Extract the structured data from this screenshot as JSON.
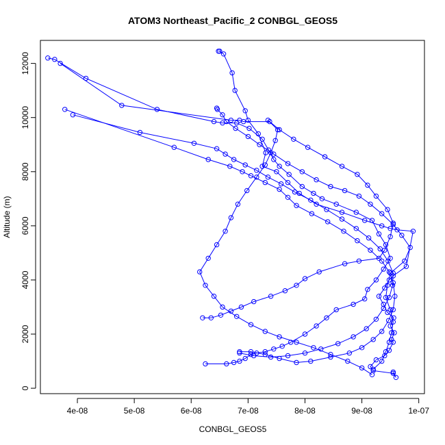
{
  "chart_data": {
    "type": "line",
    "title": "ATOM3 Northeast_Pacific_2 CONBGL_GEOS5",
    "xlabel": "CONBGL_GEOS5",
    "ylabel": "Altitude (m)",
    "xlim": [
      3.35e-08,
      1.01e-07
    ],
    "ylim": [
      -200,
      12850
    ],
    "x_ticks": [
      4e-08,
      5e-08,
      6e-08,
      7e-08,
      8e-08,
      9e-08,
      1e-07
    ],
    "x_tick_labels": [
      "4e-08",
      "5e-08",
      "6e-08",
      "7e-08",
      "8e-08",
      "9e-08",
      "1e-07"
    ],
    "y_ticks": [
      0,
      2000,
      4000,
      6000,
      8000,
      10000,
      12000
    ],
    "y_tick_labels": [
      "0",
      "2000",
      "4000",
      "6000",
      "8000",
      "10000",
      "12000"
    ],
    "grid": false,
    "legend": "none",
    "marker": "open-circle",
    "color": "#0000ff",
    "series": [
      {
        "x": [
          6.48e-08,
          6.5e-08,
          6.57e-08,
          6.72e-08,
          6.77e-08,
          6.95e-08,
          7e-08,
          7.18e-08,
          7.31e-08,
          7.25e-08,
          7.5e-08,
          7.7e-08,
          7.9e-08,
          8.2e-08,
          8.65e-08,
          9.05e-08,
          9.35e-08,
          9.5e-08,
          9.62e-08,
          9.9e-08,
          9.78e-08,
          9.55e-08,
          9.48e-08,
          9.4e-08,
          9.3e-08,
          9.38e-08,
          9.45e-08,
          9.56e-08,
          9.5e-08,
          9.57e-08,
          9.52e-08,
          9.55e-08,
          9.48e-08,
          9.4e-08,
          9.25e-08,
          9.15e-08,
          9.2e-08,
          9.55e-08,
          9.6e-08,
          9.55e-08
        ],
        "y": [
          12450,
          12450,
          12350,
          11650,
          11000,
          10250,
          9900,
          9400,
          8700,
          8200,
          8000,
          7600,
          7200,
          6800,
          6500,
          6200,
          6000,
          5900,
          5850,
          5800,
          4500,
          4150,
          4000,
          3700,
          3400,
          3100,
          2800,
          2600,
          2300,
          2050,
          1800,
          1700,
          1400,
          1200,
          1050,
          800,
          650,
          550,
          400,
          600
        ]
      },
      {
        "x": [
          3.48e-08,
          3.6e-08,
          4.15e-08,
          5.4e-08,
          6.4e-08,
          6.55e-08,
          6.8e-08,
          7.02e-08,
          7.25e-08,
          7.36e-08,
          7.45e-08,
          7.55e-08,
          7.72e-08,
          7.95e-08,
          8.15e-08,
          8.3e-08,
          8.55e-08,
          8.9e-08,
          9.18e-08,
          9.3e-08,
          9.42e-08,
          9.5e-08,
          9.38e-08,
          9.25e-08,
          9.1e-08,
          9.05e-08,
          8.85e-08,
          8.55e-08,
          8.38e-08,
          8.2e-08,
          8e-08,
          7.75e-08,
          7.6e-08,
          7.45e-08,
          7.3e-08,
          7.15e-08,
          7.05e-08,
          6.95e-08,
          6.85e-08,
          6.75e-08,
          6.62e-08,
          6.25e-08
        ],
        "y": [
          12200,
          12150,
          11450,
          10300,
          9850,
          9800,
          9800,
          9600,
          9200,
          8800,
          8450,
          8200,
          7900,
          7450,
          7200,
          7000,
          6800,
          6500,
          6200,
          5700,
          5300,
          4800,
          4400,
          4000,
          3650,
          3300,
          3100,
          2900,
          2600,
          2300,
          2000,
          1700,
          1550,
          1450,
          1350,
          1300,
          1250,
          1100,
          1000,
          950,
          900,
          900
        ]
      },
      {
        "x": [
          3.7e-08,
          4.78e-08,
          6.7e-08,
          6.85e-08,
          6.92e-08,
          7.38e-08,
          7.55e-08,
          7.8e-08,
          8.05e-08,
          8.35e-08,
          8.65e-08,
          8.92e-08,
          9.1e-08,
          9.25e-08,
          9.45e-08,
          9.55e-08,
          9.5e-08,
          9.4e-08,
          9.3e-08,
          8.95e-08,
          8.7e-08,
          8.25e-08,
          8e-08,
          7.85e-08,
          7.65e-08,
          7.4e-08,
          7.1e-08,
          6.88e-08,
          6.7e-08,
          6.52e-08,
          6.35e-08,
          6.2e-08
        ],
        "y": [
          12000,
          10450,
          9900,
          9900,
          9850,
          9850,
          9550,
          9200,
          8900,
          8550,
          8200,
          7900,
          7500,
          7100,
          6600,
          6100,
          5600,
          5100,
          4800,
          4700,
          4600,
          4300,
          4050,
          3800,
          3600,
          3400,
          3200,
          3000,
          2850,
          2700,
          2600,
          2600
        ]
      },
      {
        "x": [
          3.78e-08,
          5.7e-08,
          6.3e-08,
          6.68e-08,
          6.9e-08,
          7.05e-08,
          7.3e-08,
          7.55e-08,
          7.7e-08,
          7.85e-08,
          8.12e-08,
          8.4e-08,
          8.68e-08,
          8.92e-08,
          9.15e-08,
          9.35e-08,
          9.48e-08,
          9.55e-08,
          9.58e-08,
          9.55e-08,
          9.47e-08,
          9.35e-08,
          9.2e-08,
          9e-08,
          8.78e-08,
          8.45e-08,
          8.1e-08,
          7.85e-08,
          7.55e-08,
          7.3e-08,
          7.05e-08,
          6.85e-08
        ],
        "y": [
          10300,
          8900,
          8450,
          8200,
          8000,
          7850,
          7600,
          7350,
          7050,
          6750,
          6450,
          6150,
          5800,
          5450,
          5100,
          4700,
          4300,
          3900,
          3400,
          2900,
          2500,
          2100,
          1800,
          1500,
          1300,
          1150,
          1000,
          950,
          1100,
          1250,
          1350,
          1350
        ]
      },
      {
        "x": [
          3.92e-08,
          5.1e-08,
          6.05e-08,
          6.45e-08,
          6.6e-08,
          6.75e-08,
          6.95e-08,
          7.15e-08,
          7.35e-08,
          7.58e-08,
          7.82e-08,
          8.1e-08,
          8.38e-08,
          8.65e-08,
          8.9e-08,
          9.12e-08,
          9.32e-08,
          9.46e-08,
          9.55e-08,
          9.54e-08,
          9.48e-08,
          9.38e-08,
          9.25e-08,
          9.08e-08,
          8.85e-08,
          8.58e-08,
          8.28e-08,
          8e-08,
          7.7e-08,
          7.4e-08,
          7.1e-08,
          6.85e-08
        ],
        "y": [
          10100,
          9450,
          9050,
          8850,
          8650,
          8450,
          8250,
          8050,
          7800,
          7550,
          7250,
          6950,
          6600,
          6250,
          5900,
          5550,
          5150,
          4700,
          4250,
          3800,
          3350,
          2950,
          2550,
          2200,
          1900,
          1650,
          1450,
          1300,
          1200,
          1150,
          1200,
          1300
        ]
      },
      {
        "x": [
          6.45e-08,
          6.46e-08,
          6.55e-08,
          6.62e-08,
          6.78e-08,
          7e-08,
          7.2e-08,
          7.45e-08,
          7.7e-08,
          7.95e-08,
          8.2e-08,
          8.45e-08,
          8.7e-08,
          8.95e-08,
          9.15e-08,
          9.35e-08,
          9.55e-08,
          9.7e-08,
          9.85e-08,
          9.75e-08,
          9.5e-08,
          9.45e-08,
          9.42e-08,
          9.5e-08,
          9.55e-08,
          9.52e-08,
          9.48e-08,
          9.42e-08,
          9.35e-08,
          9.2e-08
        ],
        "y": [
          10350,
          10300,
          10100,
          9850,
          9600,
          9300,
          9000,
          8650,
          8300,
          8000,
          7700,
          7450,
          7300,
          7100,
          6800,
          6450,
          6050,
          5650,
          5200,
          4700,
          4250,
          3800,
          3350,
          2900,
          2450,
          2050,
          1700,
          1350,
          1000,
          700
        ]
      },
      {
        "x": [
          7.35e-08,
          7.52e-08,
          7.48e-08,
          7.4e-08,
          7.3e-08,
          7.15e-08,
          6.98e-08,
          6.82e-08,
          6.7e-08,
          6.6e-08,
          6.45e-08,
          6.3e-08,
          6.15e-08,
          6.25e-08,
          6.4e-08,
          6.55e-08,
          6.8e-08,
          7.05e-08,
          7.3e-08,
          7.55e-08,
          7.85e-08,
          8.15e-08,
          8.45e-08,
          8.75e-08,
          9e-08,
          9.18e-08
        ],
        "y": [
          9900,
          9550,
          9150,
          8700,
          8250,
          7800,
          7300,
          6800,
          6300,
          5800,
          5300,
          4800,
          4300,
          3800,
          3400,
          3000,
          2650,
          2350,
          2100,
          1900,
          1700,
          1500,
          1250,
          1000,
          750,
          500
        ]
      }
    ]
  }
}
